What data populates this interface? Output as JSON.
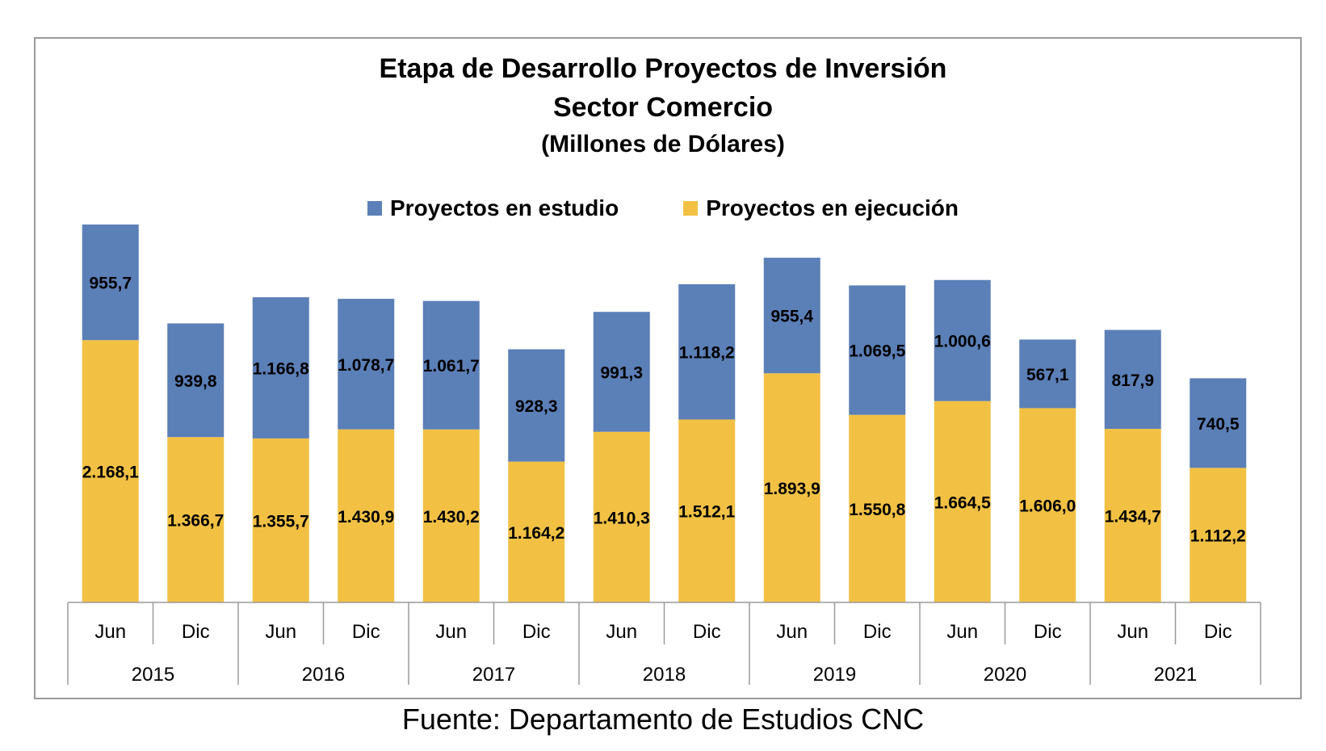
{
  "chart_data": {
    "type": "bar",
    "stacked": true,
    "title": "Etapa de Desarrollo Proyectos de Inversión",
    "subtitle": "Sector Comercio",
    "unit_line": "(Millones de Dólares)",
    "xlabel": "",
    "ylabel": "",
    "legend_position": "top",
    "grid": false,
    "categories": [
      "Jun",
      "Dic",
      "Jun",
      "Dic",
      "Jun",
      "Dic",
      "Jun",
      "Dic",
      "Jun",
      "Dic",
      "Jun",
      "Dic",
      "Jun",
      "Dic"
    ],
    "years": [
      "2015",
      "2016",
      "2017",
      "2018",
      "2019",
      "2020",
      "2021"
    ],
    "series": [
      {
        "name": "Proyectos en ejecución",
        "color": "#F2C144",
        "values": [
          2168.1,
          1366.7,
          1355.7,
          1430.9,
          1430.2,
          1164.2,
          1410.3,
          1512.1,
          1893.9,
          1550.8,
          1664.5,
          1606.0,
          1434.7,
          1112.2
        ],
        "labels": [
          "2.168,1",
          "1.366,7",
          "1.355,7",
          "1.430,9",
          "1.430,2",
          "1.164,2",
          "1.410,3",
          "1.512,1",
          "1.893,9",
          "1.550,8",
          "1.664,5",
          "1.606,0",
          "1.434,7",
          "1.112,2"
        ]
      },
      {
        "name": "Proyectos en estudio",
        "color": "#5B7FB7",
        "values": [
          955.7,
          939.8,
          1166.8,
          1078.7,
          1061.7,
          928.3,
          991.3,
          1118.2,
          955.4,
          1069.5,
          1000.6,
          567.1,
          817.9,
          740.5
        ],
        "labels": [
          "955,7",
          "939,8",
          "1.166,8",
          "1.078,7",
          "1.061,7",
          "928,3",
          "991,3",
          "1.118,2",
          "955,4",
          "1.069,5",
          "1.000,6",
          "567,1",
          "817,9",
          "740,5"
        ]
      }
    ],
    "ylim": [
      0,
      3124
    ]
  },
  "source": "Fuente: Departamento de Estudios CNC"
}
